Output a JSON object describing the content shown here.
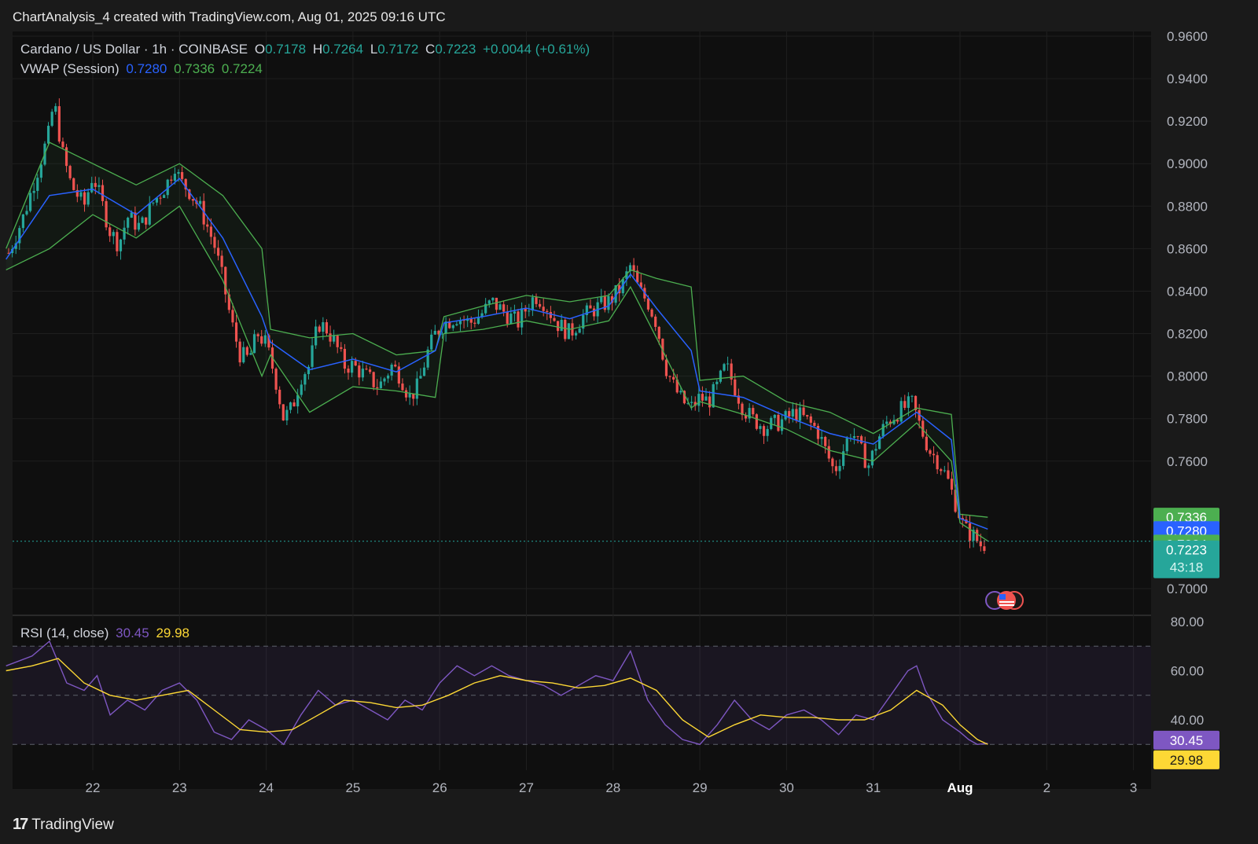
{
  "header": {
    "credit": "ChartAnalysis_4 created with TradingView.com, Aug 01, 2025 09:16 UTC"
  },
  "legend": {
    "symbol": "Cardano / US Dollar · 1h · COINBASE",
    "o_label": "O",
    "o_value": "0.7178",
    "h_label": "H",
    "h_value": "0.7264",
    "l_label": "L",
    "l_value": "0.7172",
    "c_label": "C",
    "c_value": "0.7223",
    "change": "+0.0044 (+0.61%)",
    "vwap_label": "VWAP (Session)",
    "vwap_mid": "0.7280",
    "vwap_upper": "0.7336",
    "vwap_lower": "0.7224",
    "rsi_label": "RSI (14, close)",
    "rsi_value": "30.45",
    "rsi_ma": "29.98"
  },
  "price_tags": {
    "vwap_upper": "0.7336",
    "vwap_mid": "0.7280",
    "vwap_lower": "0.7224",
    "last": "0.7223",
    "countdown": "43:18",
    "rsi": "30.45",
    "rsi_ma": "29.98"
  },
  "footer": {
    "brand": "TradingView"
  },
  "colors": {
    "up": "#26a69a",
    "down": "#ef5350",
    "vwap": "#2962ff",
    "band": "#4caf50",
    "rsi": "#7e57c2",
    "rsi_ma": "#fdd835"
  },
  "chart_data": [
    {
      "type": "candlestick",
      "title": "Cardano / US Dollar · 1h · COINBASE",
      "x_ticks": [
        "22",
        "23",
        "24",
        "25",
        "26",
        "27",
        "28",
        "29",
        "30",
        "31",
        "Aug",
        "2",
        "3"
      ],
      "y_ticks": [
        "0.9600",
        "0.9400",
        "0.9200",
        "0.9000",
        "0.8800",
        "0.8600",
        "0.8400",
        "0.8200",
        "0.8000",
        "0.7800",
        "0.7600",
        "0.7000"
      ],
      "ylim": [
        0.6885,
        0.9605
      ],
      "xlim": [
        21.03,
        23.32
      ],
      "price_path": [
        [
          21.0,
          0.855
        ],
        [
          21.2,
          0.875
        ],
        [
          21.35,
          0.895
        ],
        [
          21.5,
          0.915
        ],
        [
          21.55,
          0.93
        ],
        [
          21.65,
          0.905
        ],
        [
          21.75,
          0.89
        ],
        [
          21.9,
          0.88
        ],
        [
          22.0,
          0.895
        ],
        [
          22.1,
          0.882
        ],
        [
          22.2,
          0.868
        ],
        [
          22.3,
          0.862
        ],
        [
          22.4,
          0.875
        ],
        [
          22.55,
          0.87
        ],
        [
          22.7,
          0.882
        ],
        [
          22.85,
          0.89
        ],
        [
          22.95,
          0.9
        ],
        [
          23.0,
          0.892
        ],
        [
          23.1,
          0.888
        ],
        [
          23.25,
          0.878
        ],
        [
          23.4,
          0.862
        ],
        [
          23.5,
          0.845
        ],
        [
          23.6,
          0.825
        ],
        [
          23.7,
          0.81
        ],
        [
          23.8,
          0.808
        ],
        [
          23.9,
          0.82
        ],
        [
          24.0,
          0.815
        ],
        [
          24.1,
          0.8
        ],
        [
          24.2,
          0.78
        ],
        [
          24.3,
          0.785
        ],
        [
          24.4,
          0.8
        ],
        [
          24.5,
          0.805
        ],
        [
          24.6,
          0.825
        ],
        [
          24.7,
          0.822
        ],
        [
          24.8,
          0.815
        ],
        [
          24.9,
          0.805
        ],
        [
          25.0,
          0.805
        ],
        [
          25.15,
          0.8
        ],
        [
          25.3,
          0.795
        ],
        [
          25.45,
          0.805
        ],
        [
          25.55,
          0.8
        ],
        [
          25.65,
          0.79
        ],
        [
          25.75,
          0.795
        ],
        [
          25.85,
          0.81
        ],
        [
          25.95,
          0.82
        ],
        [
          26.05,
          0.825
        ],
        [
          26.2,
          0.828
        ],
        [
          26.35,
          0.825
        ],
        [
          26.5,
          0.83
        ],
        [
          26.6,
          0.835
        ],
        [
          26.75,
          0.83
        ],
        [
          26.9,
          0.825
        ],
        [
          27.0,
          0.832
        ],
        [
          27.1,
          0.838
        ],
        [
          27.2,
          0.835
        ],
        [
          27.35,
          0.825
        ],
        [
          27.5,
          0.82
        ],
        [
          27.65,
          0.828
        ],
        [
          27.8,
          0.832
        ],
        [
          27.95,
          0.835
        ],
        [
          28.1,
          0.842
        ],
        [
          28.2,
          0.852
        ],
        [
          28.3,
          0.84
        ],
        [
          28.4,
          0.835
        ],
        [
          28.5,
          0.825
        ],
        [
          28.6,
          0.805
        ],
        [
          28.7,
          0.795
        ],
        [
          28.8,
          0.788
        ],
        [
          28.9,
          0.785
        ],
        [
          29.0,
          0.79
        ],
        [
          29.1,
          0.788
        ],
        [
          29.2,
          0.795
        ],
        [
          29.3,
          0.805
        ],
        [
          29.4,
          0.795
        ],
        [
          29.5,
          0.785
        ],
        [
          29.6,
          0.78
        ],
        [
          29.75,
          0.776
        ],
        [
          29.9,
          0.778
        ],
        [
          30.0,
          0.78
        ],
        [
          30.1,
          0.783
        ],
        [
          30.2,
          0.78
        ],
        [
          30.35,
          0.775
        ],
        [
          30.45,
          0.765
        ],
        [
          30.55,
          0.755
        ],
        [
          30.65,
          0.765
        ],
        [
          30.75,
          0.775
        ],
        [
          30.85,
          0.765
        ],
        [
          30.95,
          0.758
        ],
        [
          31.05,
          0.77
        ],
        [
          31.15,
          0.778
        ],
        [
          31.25,
          0.782
        ],
        [
          31.35,
          0.785
        ],
        [
          31.45,
          0.787
        ],
        [
          31.55,
          0.775
        ],
        [
          31.65,
          0.765
        ],
        [
          31.75,
          0.76
        ],
        [
          31.85,
          0.752
        ],
        [
          31.95,
          0.74
        ],
        [
          32.05,
          0.728
        ],
        [
          32.15,
          0.725
        ],
        [
          32.25,
          0.72
        ],
        [
          32.32,
          0.7223
        ]
      ],
      "vwap_mid_path": [
        [
          21.0,
          0.855
        ],
        [
          21.5,
          0.885
        ],
        [
          22.0,
          0.888
        ],
        [
          22.5,
          0.876
        ],
        [
          23.0,
          0.893
        ],
        [
          23.5,
          0.865
        ],
        [
          23.95,
          0.828
        ],
        [
          24.05,
          0.816
        ],
        [
          24.5,
          0.803
        ],
        [
          25.0,
          0.808
        ],
        [
          25.5,
          0.802
        ],
        [
          25.95,
          0.812
        ],
        [
          26.05,
          0.825
        ],
        [
          26.5,
          0.828
        ],
        [
          27.0,
          0.832
        ],
        [
          27.5,
          0.827
        ],
        [
          27.95,
          0.833
        ],
        [
          28.2,
          0.848
        ],
        [
          28.5,
          0.832
        ],
        [
          28.9,
          0.812
        ],
        [
          29.0,
          0.793
        ],
        [
          29.5,
          0.79
        ],
        [
          30.0,
          0.781
        ],
        [
          30.5,
          0.773
        ],
        [
          31.0,
          0.768
        ],
        [
          31.5,
          0.783
        ],
        [
          31.9,
          0.77
        ],
        [
          32.0,
          0.733
        ],
        [
          32.32,
          0.728
        ]
      ],
      "vwap_upper_path": [
        [
          21.0,
          0.86
        ],
        [
          21.5,
          0.91
        ],
        [
          22.0,
          0.9
        ],
        [
          22.5,
          0.89
        ],
        [
          23.0,
          0.9
        ],
        [
          23.5,
          0.885
        ],
        [
          23.95,
          0.86
        ],
        [
          24.05,
          0.822
        ],
        [
          24.5,
          0.818
        ],
        [
          25.0,
          0.82
        ],
        [
          25.5,
          0.81
        ],
        [
          25.95,
          0.812
        ],
        [
          26.05,
          0.828
        ],
        [
          26.5,
          0.833
        ],
        [
          27.0,
          0.838
        ],
        [
          27.5,
          0.835
        ],
        [
          27.95,
          0.838
        ],
        [
          28.2,
          0.85
        ],
        [
          28.5,
          0.846
        ],
        [
          28.9,
          0.842
        ],
        [
          29.0,
          0.798
        ],
        [
          29.5,
          0.8
        ],
        [
          30.0,
          0.788
        ],
        [
          30.5,
          0.783
        ],
        [
          31.0,
          0.773
        ],
        [
          31.5,
          0.785
        ],
        [
          31.9,
          0.782
        ],
        [
          32.0,
          0.735
        ],
        [
          32.32,
          0.7336
        ]
      ],
      "vwap_lower_path": [
        [
          21.0,
          0.85
        ],
        [
          21.5,
          0.86
        ],
        [
          22.0,
          0.876
        ],
        [
          22.5,
          0.865
        ],
        [
          23.0,
          0.88
        ],
        [
          23.5,
          0.845
        ],
        [
          23.95,
          0.8
        ],
        [
          24.05,
          0.81
        ],
        [
          24.5,
          0.783
        ],
        [
          25.0,
          0.795
        ],
        [
          25.5,
          0.793
        ],
        [
          25.95,
          0.79
        ],
        [
          26.05,
          0.82
        ],
        [
          26.5,
          0.822
        ],
        [
          27.0,
          0.826
        ],
        [
          27.5,
          0.822
        ],
        [
          27.95,
          0.826
        ],
        [
          28.2,
          0.842
        ],
        [
          28.5,
          0.818
        ],
        [
          28.9,
          0.785
        ],
        [
          29.0,
          0.788
        ],
        [
          29.5,
          0.782
        ],
        [
          30.0,
          0.775
        ],
        [
          30.5,
          0.765
        ],
        [
          31.0,
          0.76
        ],
        [
          31.5,
          0.778
        ],
        [
          31.9,
          0.76
        ],
        [
          32.0,
          0.731
        ],
        [
          32.32,
          0.7224
        ]
      ]
    },
    {
      "type": "line",
      "title": "RSI (14, close)",
      "y_ticks": [
        "80.00",
        "60.00",
        "40.00"
      ],
      "ylim": [
        20.0,
        80.0
      ],
      "band": [
        30,
        70
      ],
      "series": [
        {
          "name": "RSI (14, close)",
          "points": [
            [
              21.0,
              62
            ],
            [
              21.3,
              66
            ],
            [
              21.5,
              72
            ],
            [
              21.7,
              55
            ],
            [
              21.9,
              52
            ],
            [
              22.05,
              58
            ],
            [
              22.2,
              42
            ],
            [
              22.4,
              48
            ],
            [
              22.6,
              44
            ],
            [
              22.8,
              52
            ],
            [
              23.0,
              55
            ],
            [
              23.2,
              48
            ],
            [
              23.4,
              35
            ],
            [
              23.6,
              32
            ],
            [
              23.8,
              40
            ],
            [
              24.0,
              36
            ],
            [
              24.2,
              30
            ],
            [
              24.4,
              42
            ],
            [
              24.6,
              52
            ],
            [
              24.8,
              46
            ],
            [
              25.0,
              48
            ],
            [
              25.2,
              44
            ],
            [
              25.4,
              40
            ],
            [
              25.6,
              48
            ],
            [
              25.8,
              44
            ],
            [
              26.0,
              55
            ],
            [
              26.2,
              62
            ],
            [
              26.4,
              58
            ],
            [
              26.6,
              62
            ],
            [
              26.8,
              58
            ],
            [
              27.0,
              56
            ],
            [
              27.2,
              54
            ],
            [
              27.4,
              50
            ],
            [
              27.6,
              54
            ],
            [
              27.8,
              58
            ],
            [
              28.0,
              56
            ],
            [
              28.2,
              68
            ],
            [
              28.4,
              48
            ],
            [
              28.6,
              38
            ],
            [
              28.8,
              32
            ],
            [
              29.0,
              30
            ],
            [
              29.2,
              38
            ],
            [
              29.4,
              48
            ],
            [
              29.6,
              40
            ],
            [
              29.8,
              36
            ],
            [
              30.0,
              42
            ],
            [
              30.2,
              44
            ],
            [
              30.4,
              40
            ],
            [
              30.6,
              34
            ],
            [
              30.8,
              42
            ],
            [
              31.0,
              40
            ],
            [
              31.2,
              50
            ],
            [
              31.4,
              60
            ],
            [
              31.5,
              62
            ],
            [
              31.6,
              52
            ],
            [
              31.8,
              40
            ],
            [
              32.0,
              35
            ],
            [
              32.1,
              32
            ],
            [
              32.2,
              30
            ],
            [
              32.32,
              30.45
            ]
          ]
        },
        {
          "name": "RSI MA",
          "points": [
            [
              21.0,
              60
            ],
            [
              21.3,
              62
            ],
            [
              21.6,
              65
            ],
            [
              21.9,
              55
            ],
            [
              22.2,
              50
            ],
            [
              22.5,
              48
            ],
            [
              22.8,
              50
            ],
            [
              23.1,
              52
            ],
            [
              23.4,
              44
            ],
            [
              23.7,
              36
            ],
            [
              24.0,
              35
            ],
            [
              24.3,
              36
            ],
            [
              24.6,
              42
            ],
            [
              24.9,
              48
            ],
            [
              25.2,
              47
            ],
            [
              25.5,
              45
            ],
            [
              25.8,
              46
            ],
            [
              26.1,
              50
            ],
            [
              26.4,
              55
            ],
            [
              26.7,
              58
            ],
            [
              27.0,
              56
            ],
            [
              27.3,
              55
            ],
            [
              27.6,
              53
            ],
            [
              27.9,
              54
            ],
            [
              28.2,
              57
            ],
            [
              28.5,
              52
            ],
            [
              28.8,
              40
            ],
            [
              29.1,
              33
            ],
            [
              29.4,
              38
            ],
            [
              29.7,
              42
            ],
            [
              30.0,
              41
            ],
            [
              30.3,
              41
            ],
            [
              30.6,
              40
            ],
            [
              30.9,
              40
            ],
            [
              31.2,
              44
            ],
            [
              31.5,
              52
            ],
            [
              31.8,
              46
            ],
            [
              32.0,
              38
            ],
            [
              32.2,
              32
            ],
            [
              32.32,
              29.98
            ]
          ]
        }
      ]
    }
  ]
}
